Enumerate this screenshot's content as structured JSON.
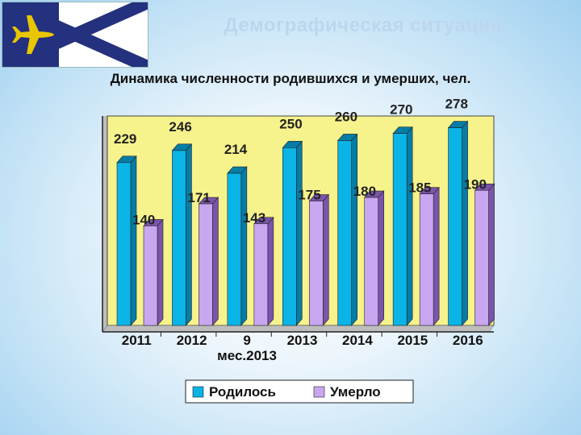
{
  "slide": {
    "title": "Демографическая ситуация",
    "subtitle": "Динамика численности родившихся и умерших, чел."
  },
  "colors": {
    "born": "#0ab4e6",
    "born_side": "#067da6",
    "died": "#c9a6f0",
    "died_side": "#7a55aa",
    "plot_bg": "#f6f38c",
    "wall": "#bdbdbd",
    "flag_blue": "#23317e",
    "flag_gold": "#e9c600"
  },
  "icons": {
    "flag": "flag-icon",
    "airplane": "airplane-icon"
  },
  "chart_data": {
    "type": "bar",
    "title": "Динамика численности родившихся и умерших, чел.",
    "categories": [
      [
        "2011"
      ],
      [
        "2012"
      ],
      [
        "9",
        "мес.2013"
      ],
      [
        "2013"
      ],
      [
        "2014"
      ],
      [
        "2015"
      ],
      [
        "2016"
      ]
    ],
    "series": [
      {
        "name": "Родилось",
        "values": [
          229,
          246,
          214,
          250,
          260,
          270,
          278
        ]
      },
      {
        "name": "Умерло",
        "values": [
          140,
          171,
          143,
          175,
          180,
          185,
          190
        ]
      }
    ],
    "ylim": [
      0,
      290
    ],
    "grid": false,
    "legend": "bottom"
  }
}
